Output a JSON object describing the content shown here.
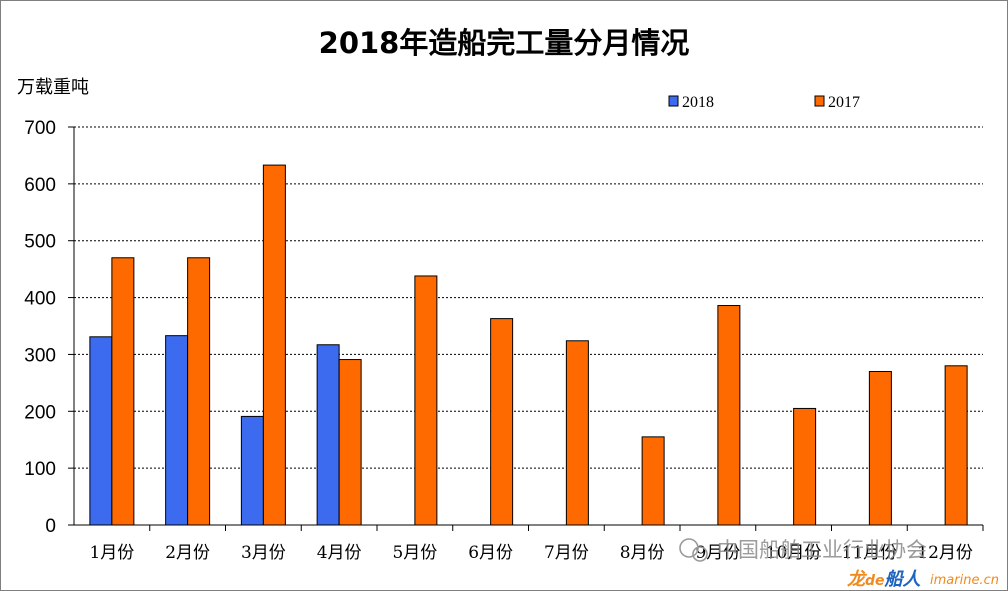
{
  "chart_data": {
    "type": "bar",
    "title": "2018年造船完工量分月情况",
    "ylabel": "万载重吨",
    "xlabel": "",
    "ylim": [
      0,
      700
    ],
    "yticks": [
      0,
      100,
      200,
      300,
      400,
      500,
      600,
      700
    ],
    "categories": [
      "1月份",
      "2月份",
      "3月份",
      "4月份",
      "5月份",
      "6月份",
      "7月份",
      "8月份",
      "9月份",
      "10月份",
      "11月份",
      "12月份"
    ],
    "series": [
      {
        "name": "2018",
        "color": "#3d6bef",
        "values": [
          331,
          333,
          191,
          317,
          null,
          null,
          null,
          null,
          null,
          null,
          null,
          null
        ]
      },
      {
        "name": "2017",
        "color": "#ff6a00",
        "values": [
          470,
          470,
          633,
          291,
          438,
          363,
          324,
          155,
          386,
          205,
          270,
          280
        ]
      }
    ],
    "grid": "horizontal-dashed",
    "legend_position": "top-right"
  },
  "watermark": {
    "text": "中国船舶工业行业协会",
    "logo_part1": "龙",
    "logo_part2": "de",
    "logo_part3": "船人",
    "logo_site": "imarine.cn"
  }
}
